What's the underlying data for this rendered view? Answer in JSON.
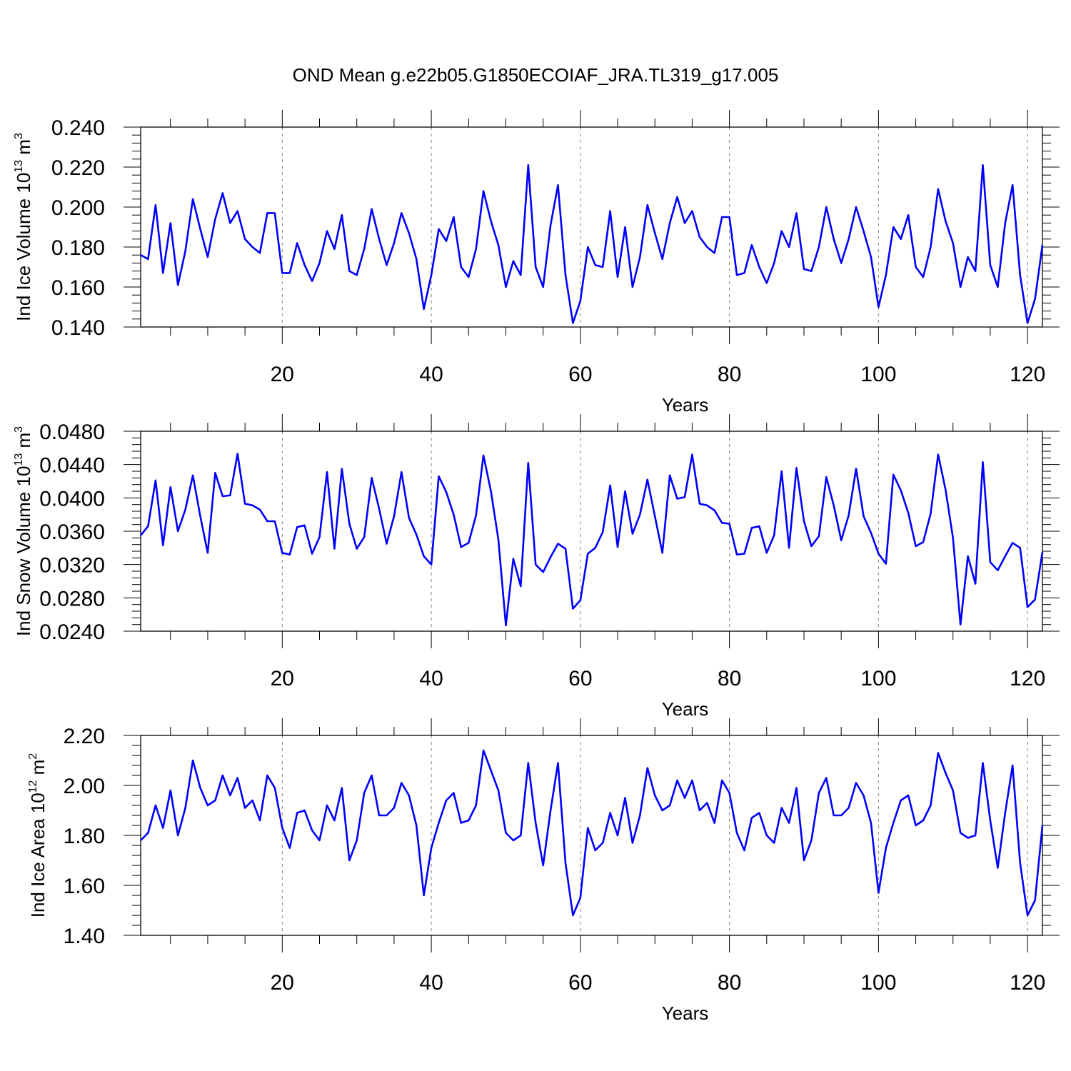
{
  "title": "OND Mean g.e22b05.G1850ECOIAF_JRA.TL319_g17.005",
  "colors": {
    "line": "#0000ff",
    "axis": "#000000",
    "grid": "#808080"
  },
  "chart_data": [
    {
      "type": "line",
      "id": "ice-volume",
      "ylabel": {
        "pre": "Ind Ice Volume 10",
        "sup": "13",
        "mid": " m",
        "sup2": "3"
      },
      "xlabel": "Years",
      "xlim": [
        1,
        122
      ],
      "ylim": [
        0.14,
        0.24
      ],
      "xticks": [
        "20",
        "40",
        "60",
        "80",
        "100",
        "120"
      ],
      "yticks": [
        "0.140",
        "0.160",
        "0.180",
        "0.200",
        "0.220",
        "0.240"
      ],
      "grid": "vertical dashed at major x ticks",
      "x_start": 1,
      "values": [
        0.176,
        0.174,
        0.201,
        0.167,
        0.192,
        0.161,
        0.178,
        0.204,
        0.189,
        0.175,
        0.194,
        0.207,
        0.192,
        0.198,
        0.184,
        0.18,
        0.177,
        0.197,
        0.197,
        0.167,
        0.167,
        0.182,
        0.171,
        0.163,
        0.172,
        0.188,
        0.179,
        0.196,
        0.168,
        0.166,
        0.179,
        0.199,
        0.184,
        0.171,
        0.182,
        0.197,
        0.187,
        0.174,
        0.149,
        0.166,
        0.189,
        0.183,
        0.195,
        0.17,
        0.165,
        0.179,
        0.208,
        0.193,
        0.181,
        0.16,
        0.173,
        0.166,
        0.221,
        0.17,
        0.16,
        0.191,
        0.211,
        0.166,
        0.142,
        0.153,
        0.18,
        0.171,
        0.17,
        0.198,
        0.165,
        0.19,
        0.16,
        0.175,
        0.201,
        0.187,
        0.174,
        0.192,
        0.205,
        0.192,
        0.198,
        0.185,
        0.18,
        0.177,
        0.195,
        0.195,
        0.166,
        0.167,
        0.181,
        0.17,
        0.162,
        0.172,
        0.188,
        0.18,
        0.197,
        0.169,
        0.168,
        0.18,
        0.2,
        0.184,
        0.172,
        0.184,
        0.2,
        0.188,
        0.175,
        0.15,
        0.166,
        0.19,
        0.184,
        0.196,
        0.17,
        0.165,
        0.18,
        0.209,
        0.193,
        0.182,
        0.16,
        0.175,
        0.168,
        0.221,
        0.171,
        0.16,
        0.192,
        0.211,
        0.166,
        0.142,
        0.154,
        0.181
      ]
    },
    {
      "type": "line",
      "id": "snow-volume",
      "ylabel": {
        "pre": "Ind Snow Volume 10",
        "sup": "13",
        "mid": " m",
        "sup2": "3"
      },
      "xlabel": "Years",
      "xlim": [
        1,
        122
      ],
      "ylim": [
        0.024,
        0.048
      ],
      "xticks": [
        "20",
        "40",
        "60",
        "80",
        "100",
        "120"
      ],
      "yticks": [
        "0.0240",
        "0.0280",
        "0.0320",
        "0.0360",
        "0.0400",
        "0.0440",
        "0.0480"
      ],
      "grid": "vertical dashed at major x ticks",
      "x_start": 1,
      "values": [
        0.0355,
        0.0366,
        0.0421,
        0.0343,
        0.0413,
        0.036,
        0.0386,
        0.0427,
        0.0378,
        0.0334,
        0.043,
        0.0402,
        0.0403,
        0.0453,
        0.0393,
        0.0391,
        0.0386,
        0.0372,
        0.0372,
        0.0334,
        0.0332,
        0.0365,
        0.0367,
        0.0333,
        0.0353,
        0.0431,
        0.0339,
        0.0435,
        0.0369,
        0.0339,
        0.0353,
        0.0424,
        0.0387,
        0.0345,
        0.0378,
        0.0431,
        0.0376,
        0.0356,
        0.033,
        0.032,
        0.0426,
        0.0407,
        0.038,
        0.0341,
        0.0346,
        0.0379,
        0.0451,
        0.0408,
        0.035,
        0.0247,
        0.0327,
        0.0294,
        0.0442,
        0.032,
        0.0311,
        0.0329,
        0.0345,
        0.0339,
        0.0267,
        0.0277,
        0.0333,
        0.034,
        0.0359,
        0.0415,
        0.0341,
        0.0408,
        0.0357,
        0.038,
        0.0422,
        0.0378,
        0.0334,
        0.0427,
        0.0399,
        0.0401,
        0.0452,
        0.0393,
        0.0391,
        0.0385,
        0.037,
        0.0369,
        0.0332,
        0.0333,
        0.0364,
        0.0366,
        0.0334,
        0.0355,
        0.0432,
        0.034,
        0.0436,
        0.0372,
        0.0342,
        0.0354,
        0.0425,
        0.0391,
        0.0349,
        0.0379,
        0.0435,
        0.0378,
        0.0358,
        0.0333,
        0.0321,
        0.0428,
        0.0409,
        0.0382,
        0.0342,
        0.0347,
        0.0381,
        0.0452,
        0.041,
        0.0352,
        0.0248,
        0.033,
        0.0297,
        0.0443,
        0.0323,
        0.0313,
        0.033,
        0.0346,
        0.034,
        0.0269,
        0.0278,
        0.0335
      ]
    },
    {
      "type": "line",
      "id": "ice-area",
      "ylabel": {
        "pre": "Ind Ice Area 10",
        "sup": "12",
        "mid": " m",
        "sup2": "2"
      },
      "xlabel": "Years",
      "xlim": [
        1,
        122
      ],
      "ylim": [
        1.4,
        2.2
      ],
      "xticks": [
        "20",
        "40",
        "60",
        "80",
        "100",
        "120"
      ],
      "yticks": [
        "1.40",
        "1.60",
        "1.80",
        "2.00",
        "2.20"
      ],
      "grid": "vertical dashed at major x ticks",
      "x_start": 1,
      "values": [
        1.78,
        1.81,
        1.92,
        1.83,
        1.98,
        1.8,
        1.91,
        2.1,
        1.99,
        1.92,
        1.94,
        2.04,
        1.96,
        2.03,
        1.91,
        1.94,
        1.86,
        2.04,
        1.99,
        1.83,
        1.75,
        1.89,
        1.9,
        1.82,
        1.78,
        1.92,
        1.86,
        1.99,
        1.7,
        1.78,
        1.97,
        2.04,
        1.88,
        1.88,
        1.91,
        2.01,
        1.96,
        1.84,
        1.56,
        1.75,
        1.85,
        1.94,
        1.97,
        1.85,
        1.86,
        1.92,
        2.14,
        2.06,
        1.98,
        1.81,
        1.78,
        1.8,
        2.09,
        1.85,
        1.68,
        1.9,
        2.09,
        1.69,
        1.48,
        1.55,
        1.83,
        1.74,
        1.77,
        1.89,
        1.8,
        1.95,
        1.77,
        1.88,
        2.07,
        1.96,
        1.9,
        1.92,
        2.02,
        1.95,
        2.02,
        1.9,
        1.93,
        1.85,
        2.02,
        1.97,
        1.81,
        1.74,
        1.87,
        1.89,
        1.8,
        1.77,
        1.91,
        1.85,
        1.99,
        1.7,
        1.78,
        1.97,
        2.03,
        1.88,
        1.88,
        1.91,
        2.01,
        1.96,
        1.85,
        1.57,
        1.75,
        1.85,
        1.94,
        1.96,
        1.84,
        1.86,
        1.92,
        2.13,
        2.05,
        1.98,
        1.81,
        1.79,
        1.8,
        2.09,
        1.86,
        1.67,
        1.89,
        2.08,
        1.69,
        1.48,
        1.54,
        1.84
      ]
    }
  ]
}
